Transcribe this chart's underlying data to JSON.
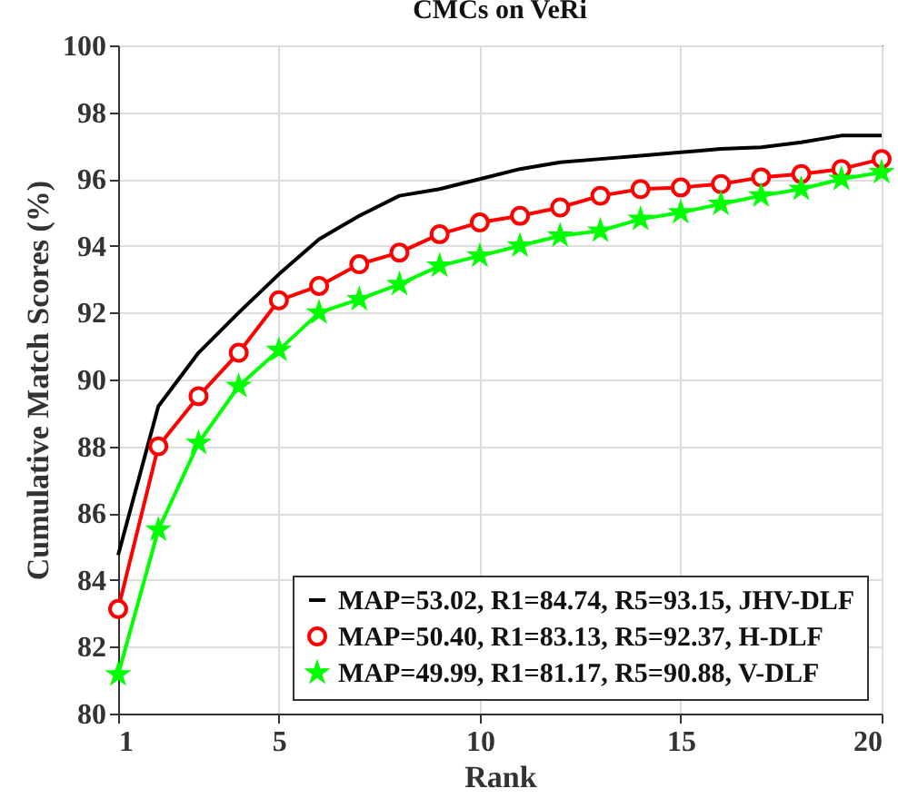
{
  "chart_data": {
    "type": "line",
    "title": "CMCs on VeRi",
    "xlabel": "Rank",
    "ylabel": "Cumulative Match Scores (%)",
    "x": [
      1,
      2,
      3,
      4,
      5,
      6,
      7,
      8,
      9,
      10,
      11,
      12,
      13,
      14,
      15,
      16,
      17,
      18,
      19,
      20
    ],
    "xlim": [
      1,
      20
    ],
    "xticks": [
      1,
      5,
      10,
      15,
      20
    ],
    "ylim": [
      80,
      100
    ],
    "yticks": [
      80,
      82,
      84,
      86,
      88,
      90,
      92,
      94,
      96,
      98,
      100
    ],
    "grid": true,
    "legend": "bottom right",
    "line_style": "solid",
    "series": [
      {
        "name": "MAP=53.02, R1=84.74, R5=93.15, JHV-DLF",
        "color": "#000000",
        "marker": "none",
        "values": [
          84.74,
          89.2,
          90.8,
          92.0,
          93.15,
          94.2,
          94.9,
          95.5,
          95.7,
          96.0,
          96.3,
          96.5,
          96.6,
          96.7,
          96.8,
          96.9,
          96.95,
          97.1,
          97.3,
          97.3
        ]
      },
      {
        "name": "MAP=50.40, R1=83.13, R5=92.37, H-DLF",
        "color": "#ff0000",
        "marker": "circle",
        "values": [
          83.13,
          88.0,
          89.5,
          90.8,
          92.37,
          92.8,
          93.45,
          93.8,
          94.35,
          94.7,
          94.9,
          95.15,
          95.5,
          95.7,
          95.75,
          95.85,
          96.05,
          96.15,
          96.3,
          96.6
        ]
      },
      {
        "name": "MAP=49.99, R1=81.17, R5=90.88, V-DLF",
        "color": "#00ff00",
        "marker": "star",
        "values": [
          81.17,
          85.5,
          88.1,
          89.8,
          90.88,
          92.0,
          92.4,
          92.85,
          93.4,
          93.7,
          94.0,
          94.3,
          94.45,
          94.8,
          95.0,
          95.25,
          95.5,
          95.7,
          96.0,
          96.2
        ]
      }
    ]
  }
}
